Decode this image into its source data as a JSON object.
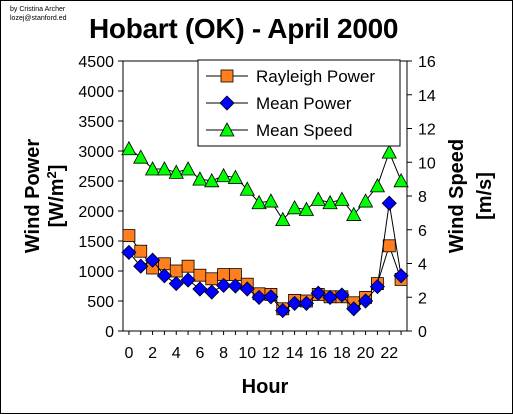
{
  "credit": {
    "line1": "by Cristina Archer",
    "line2": "lozej@stanford.ed"
  },
  "colors": {
    "rayleigh": "#ff7f1f",
    "mean_power": "#0000ff",
    "mean_speed": "#00ff00",
    "line": "#000000"
  },
  "chart_data": {
    "type": "scatter",
    "title": "Hobart (OK) - April 2000",
    "xlabel": "Hour",
    "ylabel_left": "Wind Power [W/m2]",
    "ylabel_left_main": "Wind Power",
    "ylabel_left_unit_prefix": "[W/m",
    "ylabel_left_unit_sup": "2",
    "ylabel_left_unit_suffix": "]",
    "ylabel_right_main": "Wind Speed",
    "ylabel_right_unit": "[m/s]",
    "xlim": [
      -0.5,
      23.5
    ],
    "ylim_left": [
      0,
      4500
    ],
    "ylim_right": [
      0,
      16
    ],
    "x_ticks": [
      "0",
      "2",
      "4",
      "6",
      "8",
      "10",
      "12",
      "14",
      "16",
      "18",
      "20",
      "22"
    ],
    "y_left_ticks": [
      "0",
      "500",
      "1000",
      "1500",
      "2000",
      "2500",
      "3000",
      "3500",
      "4000",
      "4500"
    ],
    "y_right_ticks": [
      "0",
      "2",
      "4",
      "6",
      "8",
      "10",
      "12",
      "14",
      "16"
    ],
    "legend_position": "top-right",
    "grid": false,
    "x": [
      0,
      1,
      2,
      3,
      4,
      5,
      6,
      7,
      8,
      9,
      10,
      11,
      12,
      13,
      14,
      15,
      16,
      17,
      18,
      19,
      20,
      21,
      22,
      23
    ],
    "series": [
      {
        "name": "Rayleigh Power",
        "axis": "left",
        "marker": "square",
        "values": [
          1590,
          1330,
          1050,
          1120,
          1000,
          1080,
          930,
          870,
          940,
          940,
          780,
          620,
          610,
          370,
          510,
          500,
          610,
          570,
          570,
          470,
          560,
          790,
          1420,
          860
        ]
      },
      {
        "name": "Mean Power",
        "axis": "left",
        "marker": "diamond",
        "values": [
          1310,
          1080,
          1180,
          920,
          790,
          850,
          700,
          650,
          760,
          750,
          700,
          560,
          570,
          340,
          460,
          460,
          630,
          560,
          600,
          370,
          500,
          740,
          2130,
          920
        ]
      },
      {
        "name": "Mean Speed",
        "axis": "right",
        "marker": "triangle",
        "values": [
          10.8,
          10.3,
          9.6,
          9.6,
          9.4,
          9.6,
          9.0,
          8.9,
          9.2,
          9.1,
          8.4,
          7.6,
          7.7,
          6.6,
          7.3,
          7.2,
          7.8,
          7.6,
          7.8,
          6.9,
          7.7,
          8.6,
          10.6,
          8.9
        ]
      }
    ]
  }
}
